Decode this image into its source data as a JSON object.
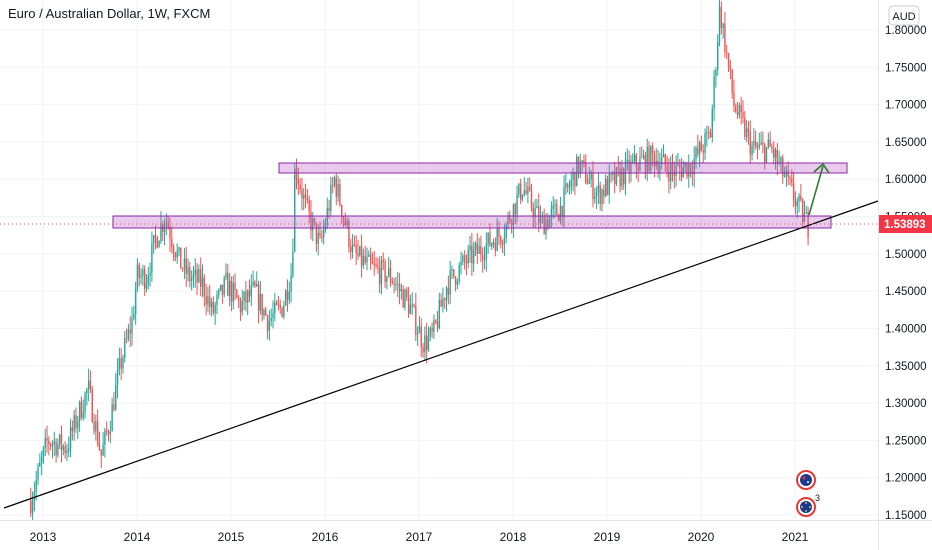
{
  "symbol_title": "Euro / Australian Dollar, 1W, FXCM",
  "currency_badge": "AUD",
  "price_badge": "1.53893",
  "colors": {
    "up": "#26a69a",
    "down": "#ef5350",
    "zone_fill": "rgba(186,104,200,0.35)",
    "zone_stroke": "#8e24aa",
    "trendline": "#000000",
    "arrow": "#2e7d32",
    "price_line": "#ef5350",
    "badge_bg": "#f23645"
  },
  "event_icons": [
    {
      "name": "au-flag-event-icon"
    },
    {
      "name": "eu-flag-event-icon",
      "count": "3"
    }
  ],
  "chart_data": {
    "type": "candlestick",
    "title": "Euro / Australian Dollar, 1W, FXCM",
    "y_axis": {
      "ticks": [
        "1.80000",
        "1.75000",
        "1.70000",
        "1.65000",
        "1.60000",
        "1.55000",
        "1.50000",
        "1.45000",
        "1.40000",
        "1.35000",
        "1.30000",
        "1.25000",
        "1.20000",
        "1.15000"
      ],
      "range": [
        1.148,
        1.845
      ]
    },
    "x_axis": {
      "ticks": [
        "2013",
        "2014",
        "2015",
        "2016",
        "2017",
        "2018",
        "2019",
        "2020",
        "2021"
      ]
    },
    "last_price": 1.53893,
    "grid": true,
    "series_path": [
      [
        2012.87,
        1.17
      ],
      [
        2013.05,
        1.25
      ],
      [
        2013.25,
        1.24
      ],
      [
        2013.48,
        1.32
      ],
      [
        2013.62,
        1.23
      ],
      [
        2013.72,
        1.28
      ],
      [
        2013.82,
        1.35
      ],
      [
        2013.95,
        1.41
      ],
      [
        2014.0,
        1.47
      ],
      [
        2014.1,
        1.47
      ],
      [
        2014.2,
        1.52
      ],
      [
        2014.3,
        1.55
      ],
      [
        2014.45,
        1.49
      ],
      [
        2014.55,
        1.47
      ],
      [
        2014.7,
        1.46
      ],
      [
        2014.8,
        1.42
      ],
      [
        2014.95,
        1.46
      ],
      [
        2015.1,
        1.43
      ],
      [
        2015.25,
        1.45
      ],
      [
        2015.4,
        1.41
      ],
      [
        2015.55,
        1.43
      ],
      [
        2015.65,
        1.48
      ],
      [
        2015.68,
        1.62
      ],
      [
        2015.8,
        1.56
      ],
      [
        2015.95,
        1.51
      ],
      [
        2016.1,
        1.6
      ],
      [
        2016.3,
        1.5
      ],
      [
        2016.5,
        1.48
      ],
      [
        2016.7,
        1.47
      ],
      [
        2016.9,
        1.43
      ],
      [
        2017.05,
        1.38
      ],
      [
        2017.15,
        1.39
      ],
      [
        2017.3,
        1.46
      ],
      [
        2017.5,
        1.49
      ],
      [
        2017.7,
        1.51
      ],
      [
        2017.9,
        1.53
      ],
      [
        2018.1,
        1.59
      ],
      [
        2018.3,
        1.54
      ],
      [
        2018.5,
        1.56
      ],
      [
        2018.7,
        1.62
      ],
      [
        2018.9,
        1.58
      ],
      [
        2019.1,
        1.6
      ],
      [
        2019.3,
        1.62
      ],
      [
        2019.5,
        1.63
      ],
      [
        2019.7,
        1.61
      ],
      [
        2019.9,
        1.62
      ],
      [
        2020.1,
        1.66
      ],
      [
        2020.2,
        1.83
      ],
      [
        2020.35,
        1.7
      ],
      [
        2020.55,
        1.64
      ],
      [
        2020.75,
        1.64
      ],
      [
        2020.9,
        1.6
      ],
      [
        2021.05,
        1.56
      ],
      [
        2021.14,
        1.538
      ]
    ]
  }
}
